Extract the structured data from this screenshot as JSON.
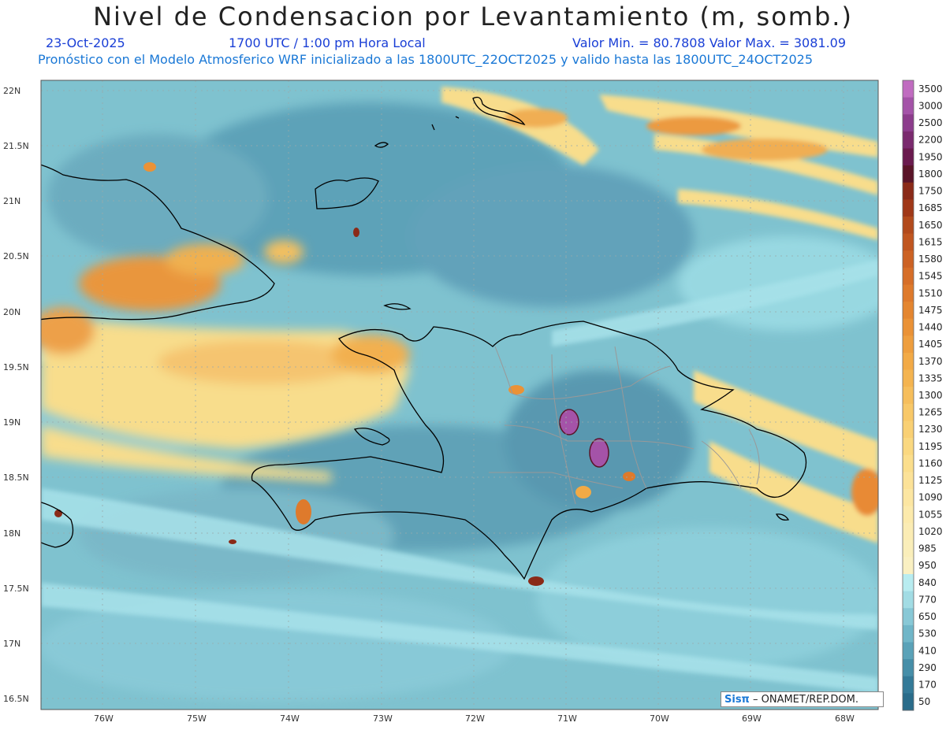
{
  "header": {
    "title": "Nivel de Condensacion por Levantamiento (m, somb.)",
    "date": "23-Oct-2025",
    "time": "1700 UTC / 1:00 pm Hora Local",
    "range": "Valor Min. = 80.7808   Valor Max. = 3081.09",
    "model_line": "Pronóstico con el Modelo Atmosferico WRF inicializado a las 1800UTC_22OCT2025 y valido hasta las  1800UTC_24OCT2025"
  },
  "map": {
    "lat_labels": [
      "22N",
      "21.5N",
      "21N",
      "20.5N",
      "20N",
      "19.5N",
      "19N",
      "18.5N",
      "18N",
      "17.5N",
      "17N",
      "16.5N"
    ],
    "lon_labels": [
      "76W",
      "75W",
      "74W",
      "73W",
      "72W",
      "71W",
      "70W",
      "69W",
      "68W"
    ]
  },
  "colorbar": {
    "labels": [
      "3500",
      "3000",
      "2500",
      "2200",
      "1950",
      "1800",
      "1750",
      "1685",
      "1650",
      "1615",
      "1580",
      "1545",
      "1510",
      "1475",
      "1440",
      "1405",
      "1370",
      "1335",
      "1300",
      "1265",
      "1230",
      "1195",
      "1160",
      "1125",
      "1090",
      "1055",
      "1020",
      "985",
      "950",
      "840",
      "770",
      "650",
      "530",
      "410",
      "290",
      "170",
      "50"
    ],
    "colors": [
      "#c06cc0",
      "#a453a8",
      "#8c3c8c",
      "#7a2a6e",
      "#6a1a4e",
      "#5a1428",
      "#8a2a18",
      "#a03818",
      "#b24a1c",
      "#c05620",
      "#cc6224",
      "#d66e28",
      "#de7a2c",
      "#e48630",
      "#ea9236",
      "#ee9e3e",
      "#f2aa46",
      "#f4b450",
      "#f6be5c",
      "#f8c868",
      "#f9d074",
      "#fad880",
      "#fbde8c",
      "#fce298",
      "#fce6a2",
      "#fceaac",
      "#fbecb4",
      "#faeeba",
      "#faf0c2",
      "#b8ecf0",
      "#a2dce4",
      "#88c8d6",
      "#70b6c8",
      "#5aa2b8",
      "#468ea8",
      "#347a98",
      "#2a6c8a"
    ]
  },
  "credit": {
    "logo": "Sisπ",
    "text": "– ONAMET/REP.DOM."
  }
}
